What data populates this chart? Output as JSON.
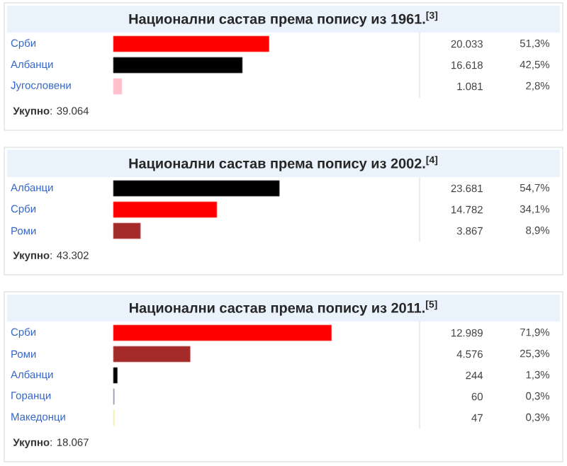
{
  "chart_data": [
    {
      "type": "bar",
      "orientation": "horizontal",
      "title": "Национални састав према попису из 1961.$^{[3]}$",
      "categories": [
        "Срби",
        "Албанци",
        "Југословени"
      ],
      "values": [
        51.3,
        42.5,
        2.8
      ],
      "colors": [
        "#ff0000",
        "#000000",
        "#ffc0cb"
      ],
      "tick_labels": "y",
      "value_labels": [
        "51,3%",
        "42,5%",
        "2,8%"
      ],
      "annotations": [
        "20.033",
        "16.618",
        "1.081",
        "**Укупно**: 39.064"
      ]
    },
    {
      "type": "bar",
      "orientation": "horizontal",
      "title": "Национални састав према попису из 2002.$^{[4]}$",
      "categories": [
        "Албанци",
        "Срби",
        "Роми"
      ],
      "values": [
        54.7,
        34.1,
        8.9
      ],
      "colors": [
        "#000000",
        "#ff0000",
        "#a52a2a"
      ],
      "tick_labels": "y",
      "value_labels": [
        "54,7%",
        "34,1%",
        "8,9%"
      ],
      "annotations": [
        "23.681",
        "14.782",
        "3.867",
        "**Укупно**: 43.302"
      ]
    },
    {
      "type": "bar",
      "orientation": "horizontal",
      "title": "Национални састав према попису из 2011.$^{[5]}$",
      "categories": [
        "Срби",
        "Роми",
        "Албанци",
        "Горанци",
        "Македонци"
      ],
      "values": [
        71.9,
        25.3,
        1.3,
        0.3,
        0.3
      ],
      "colors": [
        "#ff0000",
        "#a52a2a",
        "#000000",
        "#9b8ea8",
        "#f0f0a0"
      ],
      "tick_labels": "y",
      "value_labels": [
        "71,9%",
        "25,3%",
        "1,3%",
        "0,3%",
        "0,3%"
      ],
      "annotations": [
        "12.989",
        "4.576",
        "244",
        "60",
        "47",
        "**Укупно**: 18.067"
      ]
    }
  ]
}
